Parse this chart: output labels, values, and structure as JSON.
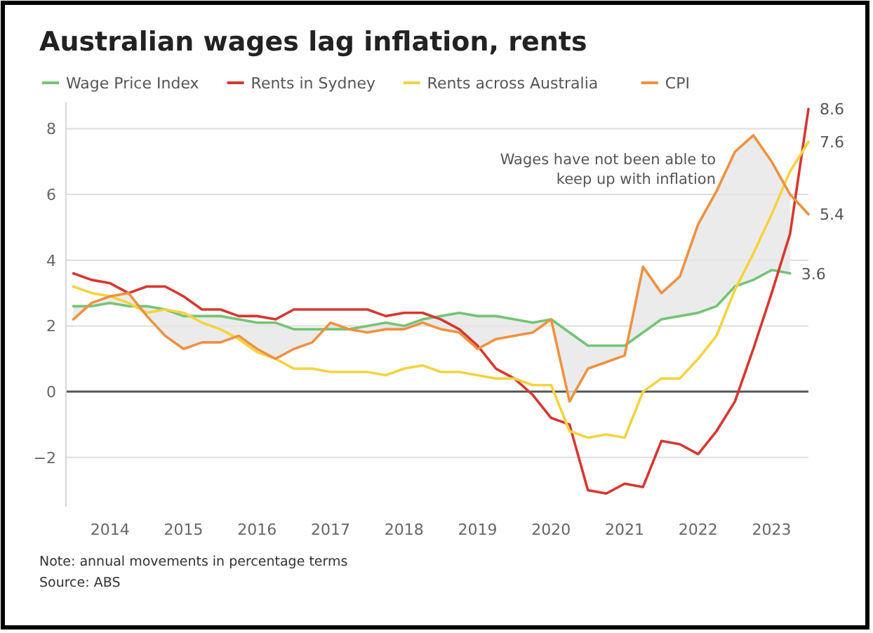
{
  "chart_data": {
    "type": "line",
    "title": "Australian wages lag inflation, rents",
    "x": [
      2013.5,
      2013.75,
      2014,
      2014.25,
      2014.5,
      2014.75,
      2015,
      2015.25,
      2015.5,
      2015.75,
      2016,
      2016.25,
      2016.5,
      2016.75,
      2017,
      2017.25,
      2017.5,
      2017.75,
      2018,
      2018.25,
      2018.5,
      2018.75,
      2019,
      2019.25,
      2019.5,
      2019.75,
      2020,
      2020.25,
      2020.5,
      2020.75,
      2021,
      2021.25,
      2021.5,
      2021.75,
      2022,
      2022.25,
      2022.5,
      2022.75,
      2023,
      2023.25,
      2023.5
    ],
    "xlim": [
      2013.4,
      2023.5
    ],
    "xticks": [
      2014,
      2015,
      2016,
      2017,
      2018,
      2019,
      2020,
      2021,
      2022,
      2023
    ],
    "ylim": [
      -3.5,
      8.8
    ],
    "yticks": [
      -2,
      0,
      2,
      4,
      6,
      8
    ],
    "grid": "y",
    "legend": "top",
    "marker": "none",
    "line_style": "solid",
    "series": [
      {
        "name": "Wage Price Index",
        "color": "#74c476",
        "values": [
          2.6,
          2.6,
          2.7,
          2.6,
          2.6,
          2.5,
          2.3,
          2.3,
          2.3,
          2.2,
          2.1,
          2.1,
          1.9,
          1.9,
          1.9,
          1.9,
          2.0,
          2.1,
          2.0,
          2.2,
          2.3,
          2.4,
          2.3,
          2.3,
          2.2,
          2.1,
          2.2,
          1.8,
          1.4,
          1.4,
          1.4,
          1.8,
          2.2,
          2.3,
          2.4,
          2.6,
          3.2,
          3.4,
          3.7,
          3.6,
          null
        ],
        "value_labels": [
          null,
          null,
          null,
          null,
          null,
          null,
          null,
          null,
          null,
          null,
          null,
          null,
          null,
          null,
          null,
          null,
          null,
          null,
          null,
          null,
          null,
          null,
          null,
          null,
          null,
          null,
          null,
          null,
          null,
          null,
          null,
          null,
          null,
          null,
          null,
          null,
          null,
          null,
          null,
          "3.6",
          null
        ]
      },
      {
        "name": "Rents in Sydney",
        "color": "#d7372f",
        "values": [
          3.6,
          3.4,
          3.3,
          3.0,
          3.2,
          3.2,
          2.9,
          2.5,
          2.5,
          2.3,
          2.3,
          2.2,
          2.5,
          2.5,
          2.5,
          2.5,
          2.5,
          2.3,
          2.4,
          2.4,
          2.2,
          1.9,
          1.4,
          0.7,
          0.4,
          -0.1,
          -0.8,
          -1.0,
          -3.0,
          -3.1,
          -2.8,
          -2.9,
          -1.5,
          -1.6,
          -1.9,
          -1.2,
          -0.3,
          1.3,
          3.0,
          4.8,
          8.6
        ],
        "value_labels": [
          null,
          null,
          null,
          null,
          null,
          null,
          null,
          null,
          null,
          null,
          null,
          null,
          null,
          null,
          null,
          null,
          null,
          null,
          null,
          null,
          null,
          null,
          null,
          null,
          null,
          null,
          null,
          null,
          null,
          null,
          null,
          null,
          null,
          null,
          null,
          null,
          null,
          null,
          null,
          null,
          "8.6"
        ]
      },
      {
        "name": "Rents across Australia",
        "color": "#f5d33f",
        "values": [
          3.2,
          3.0,
          2.9,
          2.7,
          2.4,
          2.5,
          2.4,
          2.1,
          1.9,
          1.6,
          1.2,
          1.0,
          0.7,
          0.7,
          0.6,
          0.6,
          0.6,
          0.5,
          0.7,
          0.8,
          0.6,
          0.6,
          0.5,
          0.4,
          0.4,
          0.2,
          0.2,
          -1.2,
          -1.4,
          -1.3,
          -1.4,
          0.0,
          0.4,
          0.4,
          1.0,
          1.7,
          3.1,
          4.2,
          5.4,
          6.7,
          7.6
        ],
        "value_labels": [
          null,
          null,
          null,
          null,
          null,
          null,
          null,
          null,
          null,
          null,
          null,
          null,
          null,
          null,
          null,
          null,
          null,
          null,
          null,
          null,
          null,
          null,
          null,
          null,
          null,
          null,
          null,
          null,
          null,
          null,
          null,
          null,
          null,
          null,
          null,
          null,
          null,
          null,
          null,
          null,
          "7.6"
        ]
      },
      {
        "name": "CPI",
        "color": "#ef9140",
        "values": [
          2.2,
          2.7,
          2.9,
          3.0,
          2.3,
          1.7,
          1.3,
          1.5,
          1.5,
          1.7,
          1.3,
          1.0,
          1.3,
          1.5,
          2.1,
          1.9,
          1.8,
          1.9,
          1.9,
          2.1,
          1.9,
          1.8,
          1.3,
          1.6,
          1.7,
          1.8,
          2.2,
          -0.3,
          0.7,
          0.9,
          1.1,
          3.8,
          3.0,
          3.5,
          5.1,
          6.1,
          7.3,
          7.8,
          7.0,
          6.0,
          5.4
        ],
        "value_labels": [
          null,
          null,
          null,
          null,
          null,
          null,
          null,
          null,
          null,
          null,
          null,
          null,
          null,
          null,
          null,
          null,
          null,
          null,
          null,
          null,
          null,
          null,
          null,
          null,
          null,
          null,
          null,
          null,
          null,
          null,
          null,
          null,
          null,
          null,
          null,
          null,
          null,
          null,
          null,
          null,
          "5.4"
        ],
        "lower": [
          2.6,
          2.6,
          2.7,
          2.6,
          2.6,
          2.5,
          2.3,
          2.3,
          2.3,
          2.2,
          2.1,
          2.1,
          1.9,
          1.9,
          1.9,
          1.9,
          2.0,
          2.1,
          2.0,
          2.2,
          2.3,
          2.4,
          2.3,
          2.3,
          2.2,
          2.1,
          2.2,
          1.8,
          1.4,
          1.4,
          1.4,
          1.8,
          2.2,
          2.3,
          2.4,
          2.6,
          3.2,
          3.4,
          3.7,
          3.6,
          null
        ],
        "upper": [
          2.2,
          2.7,
          2.9,
          3.0,
          2.3,
          1.7,
          1.3,
          1.5,
          1.5,
          1.7,
          1.3,
          1.0,
          1.3,
          1.5,
          2.1,
          1.9,
          1.8,
          1.9,
          1.9,
          2.1,
          1.9,
          1.8,
          1.3,
          1.6,
          1.7,
          1.8,
          2.2,
          -0.3,
          0.7,
          0.9,
          1.1,
          3.8,
          3.0,
          3.5,
          5.1,
          6.1,
          7.3,
          7.8,
          7.0,
          6.0,
          null
        ]
      }
    ],
    "annotations": [
      "Wages have not been able to\nkeep up with inflation",
      "Note: annual movements in percentage terms",
      "Source: ABS"
    ]
  }
}
